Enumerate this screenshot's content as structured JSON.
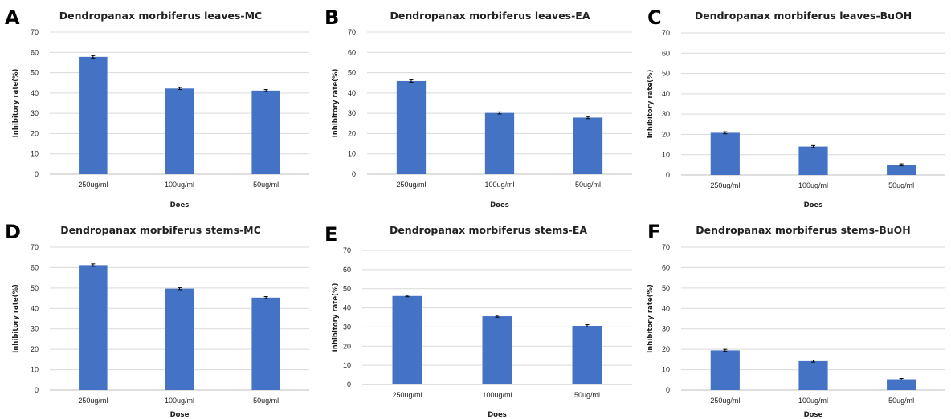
{
  "colors": {
    "bar": "#4472C4",
    "error_bar": "#000000",
    "grid": "#D9D9D9",
    "text": "#222222"
  },
  "chart_data": [
    {
      "panel": "A",
      "type": "bar",
      "title": "Dendropanax morbiferus leaves-MC",
      "xlabel": "Does",
      "ylabel": "Inhibitory rate(%)",
      "categories": [
        "250ug/ml",
        "100ug/ml",
        "50ug/ml"
      ],
      "values": [
        57.8,
        42.2,
        41.2
      ],
      "errors": [
        0.6,
        0.5,
        0.5
      ],
      "ylim": [
        0,
        70
      ],
      "yticks": [
        0,
        10,
        20,
        30,
        40,
        50,
        60,
        70
      ],
      "grid": true,
      "legend": "none"
    },
    {
      "panel": "B",
      "type": "bar",
      "title": "Dendropanax morbiferus leaves-EA",
      "xlabel": "Does",
      "ylabel": "Inhibitory rate(%)",
      "categories": [
        "250ug/ml",
        "100ug/ml",
        "50ug/ml"
      ],
      "values": [
        45.9,
        30.2,
        27.9
      ],
      "errors": [
        0.6,
        0.5,
        0.5
      ],
      "ylim": [
        0,
        70
      ],
      "yticks": [
        0,
        10,
        20,
        30,
        40,
        50,
        60,
        70
      ],
      "grid": true,
      "legend": "none"
    },
    {
      "panel": "C",
      "type": "bar",
      "title": "Dendropanax morbiferus leaves-BuOH",
      "xlabel": "Does",
      "ylabel": "Inhibitory rate(%)",
      "categories": [
        "250ug/ml",
        "100ug/ml",
        "50ug/ml"
      ],
      "values": [
        20.8,
        14.0,
        5.0
      ],
      "errors": [
        0.5,
        0.5,
        0.5
      ],
      "ylim": [
        0,
        70
      ],
      "yticks": [
        0,
        10,
        20,
        30,
        40,
        50,
        60,
        70
      ],
      "grid": true,
      "legend": "none"
    },
    {
      "panel": "D",
      "type": "bar",
      "title": "Dendropanax morbiferus stems-MC",
      "xlabel": "Dose",
      "ylabel": "Inhibitory rate(%)",
      "categories": [
        "250ug/ml",
        "100ug/ml",
        "50ug/ml"
      ],
      "values": [
        61.2,
        49.7,
        45.3
      ],
      "errors": [
        0.6,
        0.5,
        0.5
      ],
      "ylim": [
        0,
        70
      ],
      "yticks": [
        0,
        10,
        20,
        30,
        40,
        50,
        60,
        70
      ],
      "grid": true,
      "legend": "none"
    },
    {
      "panel": "E",
      "type": "bar",
      "title": "Dendropanax morbiferus stems-EA",
      "xlabel": "Does",
      "ylabel": "Inhibitory rate(%)",
      "categories": [
        "250ug/ml",
        "100ug/ml",
        "50ug/ml"
      ],
      "values": [
        46.2,
        35.6,
        30.6
      ],
      "errors": [
        0.4,
        0.5,
        0.6
      ],
      "ylim": [
        0,
        70
      ],
      "yticks": [
        0,
        10,
        20,
        30,
        40,
        50,
        60,
        70
      ],
      "grid": true,
      "legend": "none"
    },
    {
      "panel": "F",
      "type": "bar",
      "title": "Dendropanax morbiferus stems-BuOH",
      "xlabel": "Dose",
      "ylabel": "Inhibitory rate(%)",
      "categories": [
        "250ug/ml",
        "100ug/ml",
        "50ug/ml"
      ],
      "values": [
        19.5,
        14.2,
        5.3
      ],
      "errors": [
        0.5,
        0.5,
        0.4
      ],
      "ylim": [
        0,
        70
      ],
      "yticks": [
        0,
        10,
        20,
        30,
        40,
        50,
        60,
        70
      ],
      "grid": true,
      "legend": "none"
    }
  ]
}
